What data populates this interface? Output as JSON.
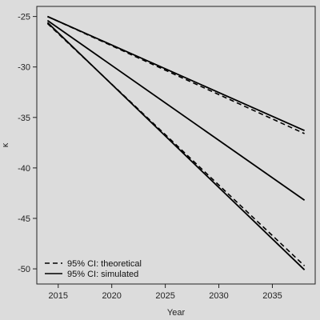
{
  "chart_data": {
    "type": "line",
    "xlabel": "Year",
    "ylabel": "κ",
    "xlim": [
      2013,
      2039
    ],
    "ylim": [
      -51.5,
      -24
    ],
    "x_ticks": [
      2015,
      2020,
      2025,
      2030,
      2035
    ],
    "y_ticks": [
      -25,
      -30,
      -35,
      -40,
      -45,
      -50
    ],
    "x": [
      2014,
      2038
    ],
    "series": [
      {
        "style": "solid",
        "values": [
          -25.4,
          -43.2
        ]
      },
      {
        "style": "dashed",
        "values": [
          -25.0,
          -36.6
        ]
      },
      {
        "style": "dashed",
        "values": [
          -25.7,
          -49.7
        ]
      },
      {
        "style": "solid",
        "values": [
          -25.0,
          -36.3
        ]
      },
      {
        "style": "solid",
        "values": [
          -25.6,
          -50.1
        ]
      }
    ],
    "legend": {
      "position": "bottom-left",
      "entries": [
        {
          "label": "95% CI: theoretical",
          "style": "dashed"
        },
        {
          "label": "95% CI: simulated",
          "style": "solid"
        }
      ]
    },
    "grid": false,
    "line_color": "#000000",
    "background": "#dcdcdc"
  }
}
